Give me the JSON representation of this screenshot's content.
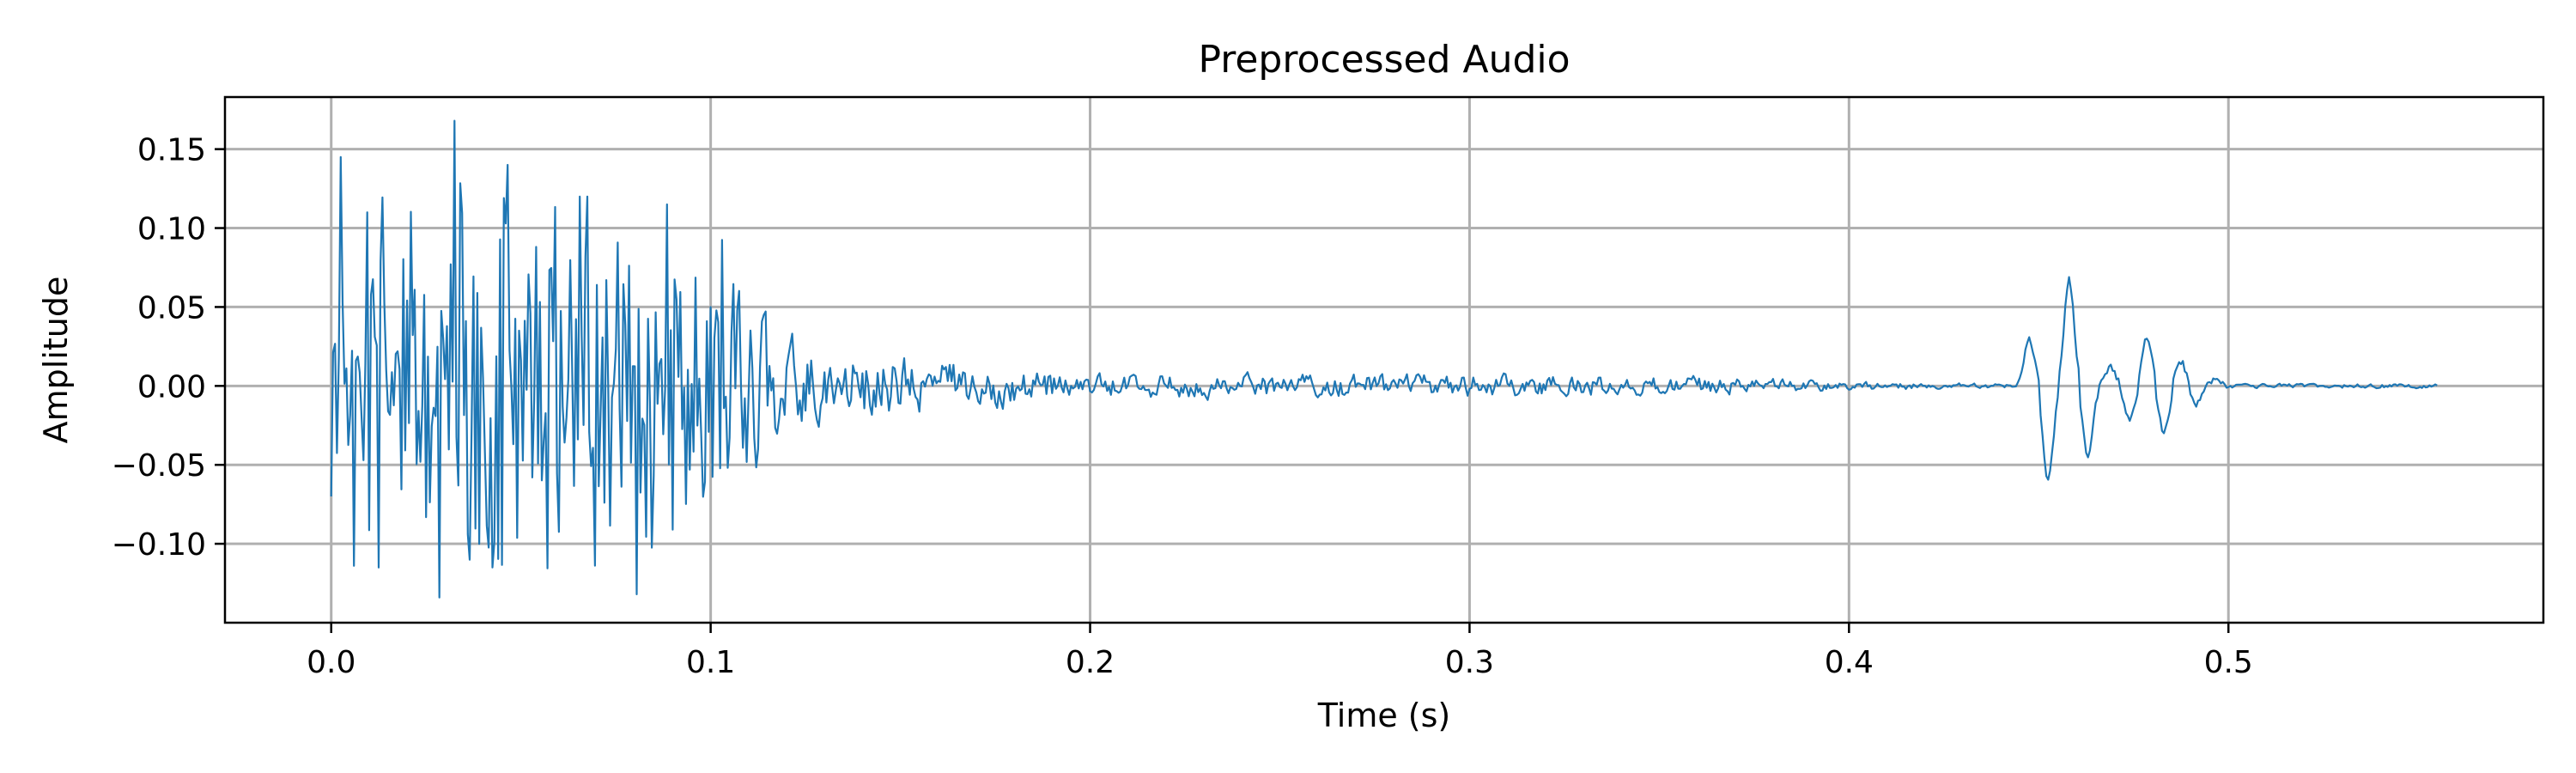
{
  "chart_data": {
    "type": "line",
    "title": "Preprocessed Audio",
    "xlabel": "Time (s)",
    "ylabel": "Amplitude",
    "xlim": [
      -0.028,
      0.583
    ],
    "ylim": [
      -0.15,
      0.183
    ],
    "xticks": [
      0.0,
      0.1,
      0.2,
      0.3,
      0.4,
      0.5
    ],
    "xtick_labels": [
      "0.0",
      "0.1",
      "0.2",
      "0.3",
      "0.4",
      "0.5"
    ],
    "yticks": [
      -0.1,
      -0.05,
      0.0,
      0.05,
      0.1,
      0.15
    ],
    "ytick_labels": [
      "−0.10",
      "−0.05",
      "0.00",
      "0.05",
      "0.10",
      "0.15"
    ],
    "grid": true,
    "color": "#1f77b4",
    "duration": 0.555,
    "sample_step": 0.0005,
    "envelope": [
      {
        "t": 0.0,
        "amp": 0.14
      },
      {
        "t": 0.03,
        "amp": 0.16
      },
      {
        "t": 0.06,
        "amp": 0.15
      },
      {
        "t": 0.1,
        "amp": 0.11
      },
      {
        "t": 0.12,
        "amp": 0.03
      },
      {
        "t": 0.16,
        "amp": 0.018
      },
      {
        "t": 0.2,
        "amp": 0.008
      },
      {
        "t": 0.3,
        "amp": 0.008
      },
      {
        "t": 0.36,
        "amp": 0.006
      },
      {
        "t": 0.4,
        "amp": 0.003
      },
      {
        "t": 0.44,
        "amp": 0.0015
      },
      {
        "t": 0.555,
        "amp": 0.0015
      }
    ],
    "events": [
      {
        "t": 0.4475,
        "value": 0.03
      },
      {
        "t": 0.4525,
        "value": -0.06
      },
      {
        "t": 0.458,
        "value": 0.068
      },
      {
        "t": 0.463,
        "value": -0.044
      },
      {
        "t": 0.469,
        "value": 0.012
      },
      {
        "t": 0.474,
        "value": -0.022
      },
      {
        "t": 0.4785,
        "value": 0.03
      },
      {
        "t": 0.483,
        "value": -0.03
      },
      {
        "t": 0.4875,
        "value": 0.015
      },
      {
        "t": 0.4915,
        "value": -0.012
      },
      {
        "t": 0.4965,
        "value": 0.004
      }
    ],
    "peaks": [
      {
        "t": 0.0025,
        "value": 0.145
      },
      {
        "t": 0.006,
        "value": -0.114
      },
      {
        "t": 0.0095,
        "value": 0.11
      },
      {
        "t": 0.0125,
        "value": -0.115
      },
      {
        "t": 0.0285,
        "value": -0.134
      },
      {
        "t": 0.0325,
        "value": 0.168
      },
      {
        "t": 0.0425,
        "value": -0.115
      },
      {
        "t": 0.0465,
        "value": 0.14
      },
      {
        "t": 0.0675,
        "value": 0.12
      },
      {
        "t": 0.0805,
        "value": -0.132
      },
      {
        "t": 0.0885,
        "value": 0.115
      }
    ]
  }
}
